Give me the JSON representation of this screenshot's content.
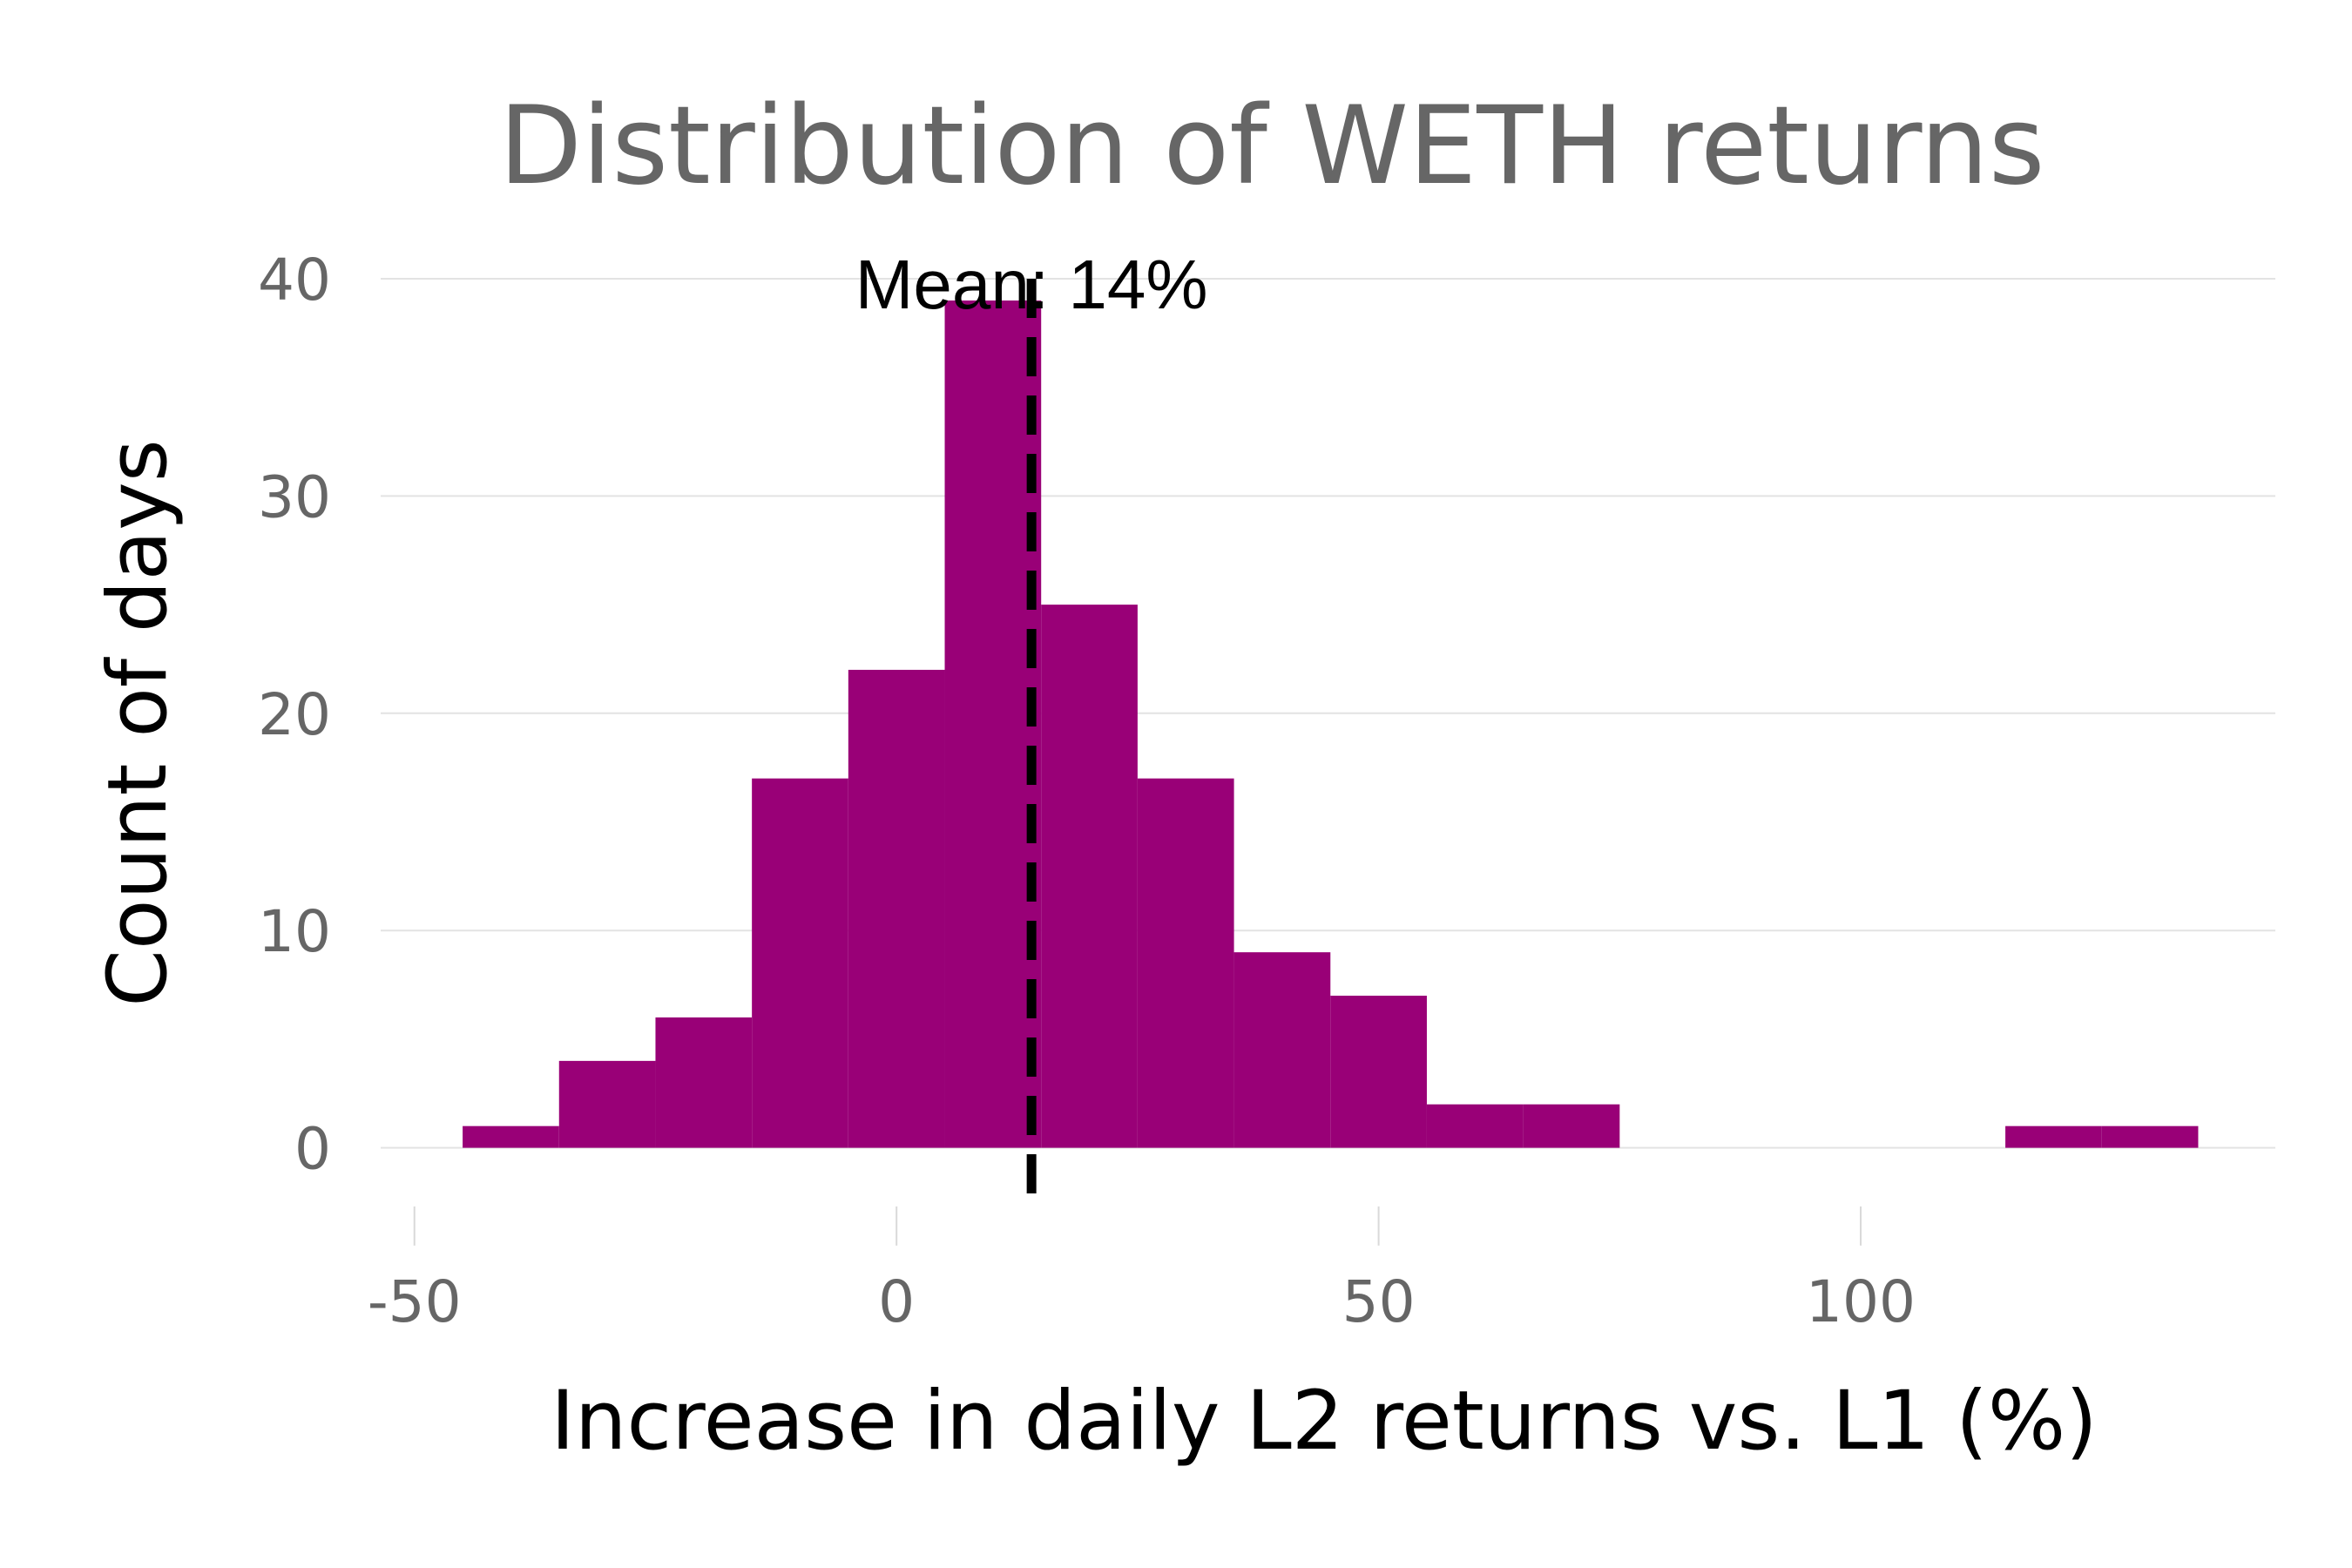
{
  "chart_data": {
    "type": "bar",
    "title": "Distribution of WETH returns",
    "xlabel": "Increase in daily L2 returns vs. L1 (%)",
    "ylabel": "Count of days",
    "xlim": [
      -53.5,
      143
    ],
    "ylim": [
      -2.1,
      40
    ],
    "x_ticks": [
      -50,
      0,
      50,
      100
    ],
    "x_tick_labels": [
      "-50",
      "0",
      "50",
      "100"
    ],
    "y_ticks": [
      0,
      10,
      20,
      30,
      40
    ],
    "y_tick_labels": [
      "0",
      "10",
      "20",
      "30",
      "40"
    ],
    "grid": true,
    "bin_width": 10,
    "categories": [
      "-40",
      "-30",
      "-20",
      "-10",
      "0",
      "10",
      "20",
      "30",
      "40",
      "50",
      "60",
      "70",
      "80",
      "90",
      "100",
      "110",
      "120",
      "130"
    ],
    "values": [
      1,
      4,
      6,
      17,
      22,
      39,
      25,
      17,
      9,
      7,
      2,
      2,
      0,
      0,
      0,
      0,
      1,
      1
    ],
    "mean_value": 14,
    "annotation": "Mean: 14%",
    "bar_color": "#990077",
    "mean_line_color": "#000000"
  }
}
